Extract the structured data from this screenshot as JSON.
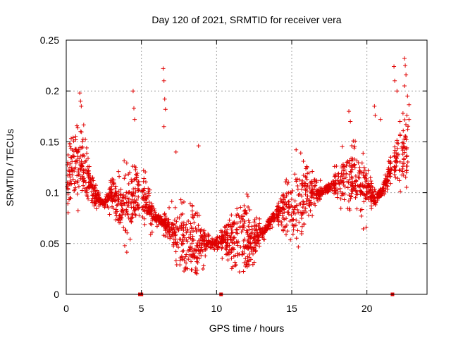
{
  "chart_data": {
    "type": "scatter",
    "title": "Day 120 of 2021, SRMTID for receiver vera",
    "xlabel": "GPS time / hours",
    "ylabel": "SRMTID / TECUs",
    "xlim": [
      0,
      24
    ],
    "ylim": [
      0,
      0.25
    ],
    "x_ticks": [
      0,
      5,
      10,
      15,
      20
    ],
    "x_tick_labels": [
      "0",
      "5",
      "10",
      "15",
      "20"
    ],
    "y_ticks": [
      0,
      0.05,
      0.1,
      0.15,
      0.2,
      0.25
    ],
    "y_tick_labels": [
      "0",
      "0.05",
      "0.1",
      "0.15",
      "0.2",
      "0.25"
    ],
    "grid": true,
    "marker": "+",
    "marker_color": "#e00000",
    "gap_markers_x": [
      4.9,
      5.0,
      10.3,
      21.7
    ],
    "trend_x": [
      0,
      0.5,
      1,
      1.5,
      2,
      2.5,
      3,
      3.5,
      4,
      4.5,
      5,
      5.5,
      6,
      6.5,
      7,
      7.5,
      8,
      8.5,
      9,
      9.5,
      10,
      10.5,
      11,
      11.5,
      12,
      12.5,
      13,
      13.5,
      14,
      14.5,
      15,
      15.5,
      16,
      16.5,
      17,
      17.5,
      18,
      18.5,
      19,
      19.5,
      20,
      20.5,
      21,
      21.5,
      22,
      22.5
    ],
    "trend_y": [
      0.115,
      0.13,
      0.13,
      0.115,
      0.095,
      0.09,
      0.1,
      0.085,
      0.085,
      0.095,
      0.1,
      0.085,
      0.075,
      0.07,
      0.065,
      0.055,
      0.05,
      0.05,
      0.05,
      0.05,
      0.05,
      0.055,
      0.055,
      0.055,
      0.055,
      0.055,
      0.06,
      0.07,
      0.08,
      0.085,
      0.085,
      0.09,
      0.1,
      0.1,
      0.1,
      0.105,
      0.11,
      0.11,
      0.115,
      0.11,
      0.105,
      0.095,
      0.1,
      0.12,
      0.135,
      0.14
    ],
    "spread": 0.035,
    "outliers": [
      {
        "x": 0.9,
        "y": 0.198
      },
      {
        "x": 0.95,
        "y": 0.19
      },
      {
        "x": 1.0,
        "y": 0.185
      },
      {
        "x": 4.45,
        "y": 0.2
      },
      {
        "x": 4.5,
        "y": 0.183
      },
      {
        "x": 4.55,
        "y": 0.172
      },
      {
        "x": 6.45,
        "y": 0.222
      },
      {
        "x": 6.5,
        "y": 0.21
      },
      {
        "x": 6.55,
        "y": 0.192
      },
      {
        "x": 6.6,
        "y": 0.182
      },
      {
        "x": 6.5,
        "y": 0.165
      },
      {
        "x": 7.3,
        "y": 0.14
      },
      {
        "x": 8.8,
        "y": 0.146
      },
      {
        "x": 18.8,
        "y": 0.18
      },
      {
        "x": 18.9,
        "y": 0.17
      },
      {
        "x": 20.5,
        "y": 0.185
      },
      {
        "x": 20.55,
        "y": 0.176
      },
      {
        "x": 20.9,
        "y": 0.172
      },
      {
        "x": 21.8,
        "y": 0.224
      },
      {
        "x": 21.85,
        "y": 0.21
      },
      {
        "x": 22.0,
        "y": 0.2
      },
      {
        "x": 22.5,
        "y": 0.232
      },
      {
        "x": 22.55,
        "y": 0.225
      },
      {
        "x": 22.6,
        "y": 0.216
      },
      {
        "x": 22.5,
        "y": 0.205
      },
      {
        "x": 22.7,
        "y": 0.195
      },
      {
        "x": 22.4,
        "y": 0.178
      },
      {
        "x": 22.2,
        "y": 0.17
      },
      {
        "x": 22.8,
        "y": 0.172
      }
    ],
    "n_points": 2200
  }
}
